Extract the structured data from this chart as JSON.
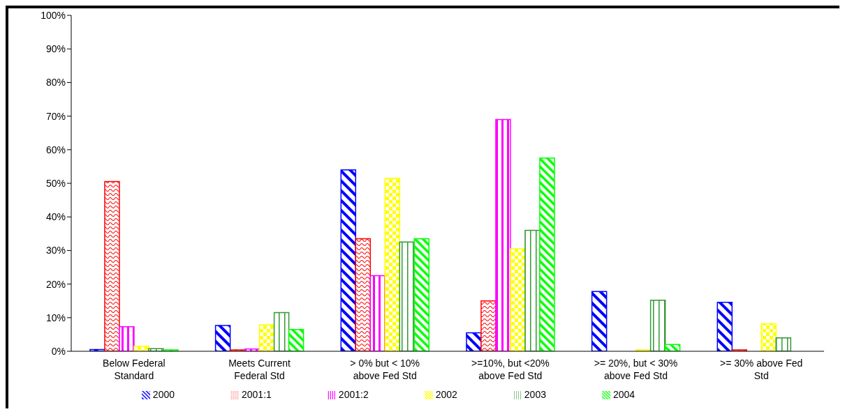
{
  "chart_data": {
    "type": "bar",
    "categories": [
      "Below Federal Standard",
      "Meets Current Federal Std",
      "> 0% but < 10% above Fed Std",
      ">=10%, but <20% above Fed Std",
      ">= 20%, but < 30% above Fed Std",
      ">= 30% above Fed Std"
    ],
    "series": [
      {
        "name": "2000",
        "color": "#0000ff",
        "values": [
          0.5,
          7.7,
          54,
          5.5,
          17.8,
          14.6
        ]
      },
      {
        "name": "2001:1",
        "color": "#ff0000",
        "values": [
          50.5,
          0.4,
          33.5,
          15,
          0,
          0.3
        ]
      },
      {
        "name": "2001:2",
        "color": "#ff00ff",
        "values": [
          7.3,
          0.7,
          22.5,
          69,
          0,
          0
        ]
      },
      {
        "name": "2002",
        "color": "#ffff00",
        "values": [
          1.5,
          7.9,
          51.5,
          30.5,
          0.3,
          8.2
        ]
      },
      {
        "name": "2003",
        "color": "#339933",
        "values": [
          0.8,
          11.5,
          32.5,
          36,
          15.2,
          4
        ]
      },
      {
        "name": "2004",
        "color": "#00ff00",
        "values": [
          0.3,
          6.5,
          33.5,
          57.5,
          2,
          0
        ]
      }
    ],
    "ylim": [
      0,
      100
    ],
    "yticks": [
      {
        "value": 0,
        "label": "0%"
      },
      {
        "value": 10,
        "label": "10%"
      },
      {
        "value": 20,
        "label": "20%"
      },
      {
        "value": 30,
        "label": "30%"
      },
      {
        "value": 40,
        "label": "40%"
      },
      {
        "value": 50,
        "label": "50%"
      },
      {
        "value": 60,
        "label": "60%"
      },
      {
        "value": 70,
        "label": "70%"
      },
      {
        "value": 80,
        "label": "80%"
      },
      {
        "value": 90,
        "label": "90%"
      },
      {
        "value": 100,
        "label": "100%"
      }
    ],
    "grid": false,
    "legend": "bottom"
  }
}
